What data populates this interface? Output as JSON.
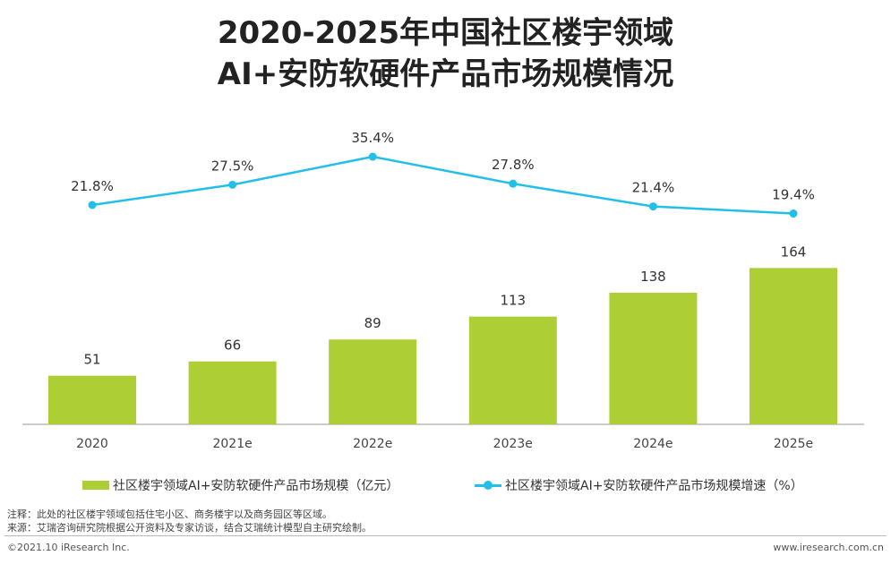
{
  "title_line1": "2020-2025年中国社区楼宇领域",
  "title_line2": "AI+安防软硬件产品市场规模情况",
  "chart_data": {
    "type": "bar+line",
    "categories": [
      "2020",
      "2021e",
      "2022e",
      "2023e",
      "2024e",
      "2025e"
    ],
    "series": [
      {
        "name": "社区楼宇领域AI+安防软硬件产品市场规模（亿元）",
        "type": "bar",
        "color": "#adcf35",
        "values": [
          51,
          66,
          89,
          113,
          138,
          164
        ],
        "labels": [
          "51",
          "66",
          "89",
          "113",
          "138",
          "164"
        ]
      },
      {
        "name": "社区楼宇领域AI+安防软硬件产品市场规模增速（%）",
        "type": "line",
        "color": "#22bfe8",
        "values": [
          21.8,
          27.5,
          35.4,
          27.8,
          21.4,
          19.4
        ],
        "labels": [
          "21.8%",
          "27.5%",
          "35.4%",
          "27.8%",
          "21.4%",
          "19.4%"
        ]
      }
    ],
    "legend": "bottom"
  },
  "notes": {
    "note": "注释：此处的社区楼宇领域包括住宅小区、商务楼宇以及商务园区等区域。",
    "source": "来源：艾瑞咨询研究院根据公开资料及专家访谈，结合艾瑞统计模型自主研究绘制。"
  },
  "footer": {
    "copyright": "©2021.10 iResearch Inc.",
    "website": "www.iresearch.com.cn"
  }
}
